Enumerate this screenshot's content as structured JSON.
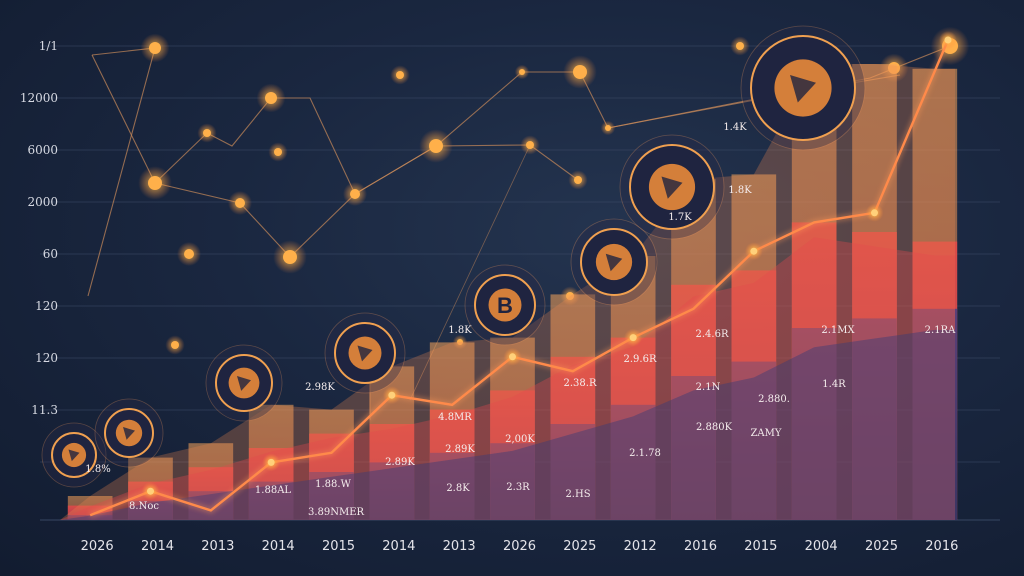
{
  "colors": {
    "background": "#1a2740",
    "grid": "#3b4a66",
    "bar_top": "#f1a45e",
    "bar_mid": "#e04a4a",
    "bar_low": "#3a3a70",
    "line": "#ff8a4a",
    "glow": "#ffb347",
    "network": "#c98a5a"
  },
  "chart_data": {
    "type": "bar",
    "title": "",
    "xlabel": "",
    "ylabel": "",
    "y_tick_labels": [
      "1/1",
      "12000",
      "6000",
      "2000",
      "60",
      "120",
      "120",
      "11.3"
    ],
    "categories": [
      "2026",
      "2014",
      "2013",
      "2014",
      "2015",
      "2014",
      "2013",
      "2026",
      "2025",
      "2012",
      "2016",
      "2015",
      "2004",
      "2025",
      "2016"
    ],
    "ylim": [
      0,
      100
    ],
    "grid": true,
    "legend": "none",
    "series": [
      {
        "values": [
          5,
          13,
          16,
          24,
          23,
          32,
          37,
          38,
          47,
          55,
          71,
          72,
          95,
          95,
          94
        ]
      },
      {
        "values": [
          3,
          8,
          11,
          15,
          18,
          20,
          23,
          27,
          34,
          38,
          49,
          52,
          62,
          60,
          58
        ]
      },
      {
        "values": [
          1,
          4,
          6,
          8,
          10,
          12,
          14,
          16,
          20,
          24,
          30,
          33,
          40,
          42,
          44
        ]
      }
    ],
    "trend_line": [
      1,
      6,
      2,
      12,
      14,
      26,
      24,
      34,
      31,
      38,
      44,
      56,
      62,
      64,
      100
    ],
    "data_labels": [
      "1.8%",
      "8.Noc",
      "1.88AL",
      "1.88.W",
      "3.89NMER",
      "2.89K",
      "4.8MR",
      "2.89K",
      "2.8K",
      "2,00K",
      "2.3R",
      "2.HS",
      "2.38.R",
      "2.9.6R",
      "2.1.78",
      "2.4.6R",
      "2.1N",
      "2.880K",
      "ZAMY",
      "2.880.",
      "2.1MX",
      "1.4R",
      "2.98K",
      "1.8K",
      "1.7K",
      "1.4K",
      "1.8K",
      "2.1RA"
    ],
    "icons": [
      "coin-icon",
      "coin-icon",
      "coin-icon",
      "shield-coin-icon",
      "bitcoin-icon",
      "coin-icon",
      "coin-icon",
      "coin-icon"
    ],
    "icon_labels": [
      "B"
    ]
  }
}
